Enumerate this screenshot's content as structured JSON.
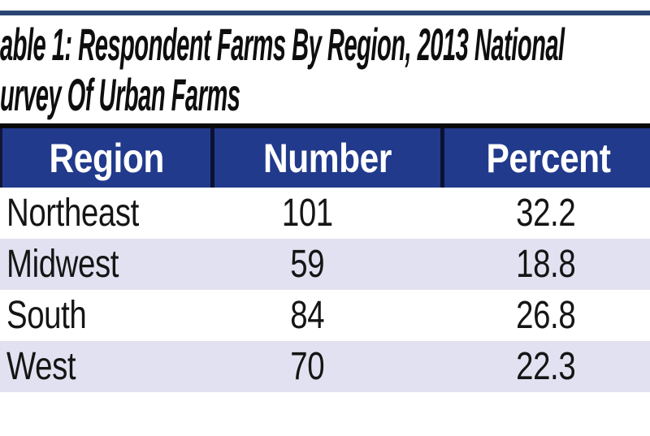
{
  "title": {
    "line1": "able 1: Respondent Farms By Region, 2013 National",
    "line2": "urvey Of Urban Farms"
  },
  "table": {
    "header": {
      "columns": [
        "Region",
        "Number",
        "Percent"
      ]
    },
    "rows": [
      {
        "region": "Northeast",
        "number": "101",
        "percent": "32.2"
      },
      {
        "region": "Midwest",
        "number": "59",
        "percent": "18.8"
      },
      {
        "region": "South",
        "number": "84",
        "percent": "26.8"
      },
      {
        "region": "West",
        "number": "70",
        "percent": "22.3"
      }
    ]
  },
  "colors": {
    "top_rule": "#2B4573",
    "title_rule": "#0a0a0a",
    "header_bg": "#213A8C",
    "header_text": "#ffffff",
    "column_separator": "#0D1130",
    "row_alt_bg": "#E2E1F1",
    "row_bg": "#ffffff",
    "body_text": "#151515"
  },
  "chart_data": {
    "type": "table",
    "title": "able 1: Respondent Farms By Region, 2013 National urvey Of Urban Farms",
    "columns": [
      "Region",
      "Number",
      "Percent"
    ],
    "categories": [
      "Northeast",
      "Midwest",
      "South",
      "West"
    ],
    "series": [
      {
        "name": "Number",
        "values": [
          101,
          59,
          84,
          70
        ]
      },
      {
        "name": "Percent",
        "values": [
          32.2,
          18.8,
          26.8,
          22.3
        ]
      }
    ]
  }
}
